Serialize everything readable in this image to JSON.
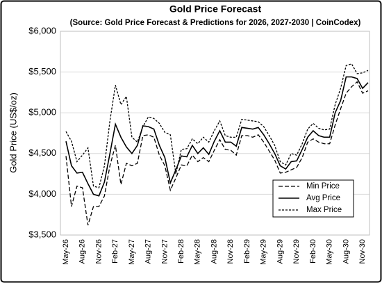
{
  "chart_data": {
    "type": "line",
    "title": "Gold Price Forecast",
    "subtitle": "(Source: Gold Price Forecast & Predictions for 2026, 2027-2030 | CoinCodex)",
    "y_label": "Gold Price (US$/oz)",
    "categories": [
      "May-26",
      null,
      null,
      "Aug-26",
      null,
      null,
      "Nov-26",
      null,
      null,
      "Feb-27",
      null,
      null,
      "May-27",
      null,
      null,
      "Aug-27",
      null,
      null,
      "Nov-27",
      null,
      null,
      "Feb-28",
      null,
      null,
      "May-28",
      null,
      null,
      "Aug-28",
      null,
      null,
      "Nov-28",
      null,
      null,
      "Feb-29",
      null,
      null,
      "May-29",
      null,
      null,
      "Aug-29",
      null,
      null,
      "Nov-29",
      null,
      null,
      "Feb-30",
      null,
      null,
      "May-30",
      null,
      null,
      "Aug-30",
      null,
      null,
      "Nov-30",
      null
    ],
    "series": [
      {
        "name": "Min Price",
        "color": "#000000",
        "dash": "6,3",
        "values": [
          4470,
          3850,
          4100,
          4080,
          3620,
          3850,
          3850,
          3980,
          4350,
          4600,
          4120,
          4380,
          4350,
          4380,
          4720,
          4730,
          4700,
          4480,
          4350,
          4050,
          4200,
          4360,
          4350,
          4480,
          4400,
          4450,
          4400,
          4540,
          4670,
          4550,
          4540,
          4480,
          4720,
          4720,
          4700,
          4730,
          4640,
          4530,
          4420,
          4260,
          4270,
          4300,
          4330,
          4450,
          4640,
          4680,
          4640,
          4620,
          4620,
          4850,
          5050,
          5240,
          5320,
          5380,
          5240,
          5270
        ]
      },
      {
        "name": "Avg Price",
        "color": "#000000",
        "dash": "none",
        "values": [
          4650,
          4350,
          4260,
          4270,
          4130,
          4000,
          3980,
          4150,
          4500,
          4860,
          4700,
          4580,
          4500,
          4600,
          4840,
          4830,
          4800,
          4600,
          4450,
          4140,
          4300,
          4470,
          4460,
          4600,
          4500,
          4570,
          4490,
          4650,
          4780,
          4640,
          4640,
          4590,
          4820,
          4810,
          4800,
          4820,
          4730,
          4620,
          4500,
          4350,
          4310,
          4400,
          4410,
          4550,
          4700,
          4780,
          4720,
          4700,
          4700,
          5000,
          5150,
          5440,
          5440,
          5420,
          5300,
          5370
        ]
      },
      {
        "name": "Max Price",
        "color": "#000000",
        "dash": "3,2",
        "values": [
          4770,
          4650,
          4400,
          4480,
          4570,
          4100,
          4080,
          4350,
          4900,
          5340,
          5100,
          5200,
          4700,
          4640,
          4830,
          4950,
          4930,
          4870,
          4760,
          4730,
          4250,
          4550,
          4560,
          4680,
          4620,
          4700,
          4640,
          4780,
          4900,
          4720,
          4700,
          4700,
          4920,
          4910,
          4900,
          4890,
          4830,
          4720,
          4600,
          4400,
          4360,
          4500,
          4480,
          4620,
          4800,
          4870,
          4810,
          4790,
          4800,
          5100,
          5300,
          5580,
          5600,
          5480,
          5490,
          5520
        ]
      }
    ],
    "ylim": [
      3500,
      6000
    ],
    "yticks": [
      {
        "value": 3500,
        "label": "$3,500"
      },
      {
        "value": 4000,
        "label": "$4,000"
      },
      {
        "value": 4500,
        "label": "$4,500"
      },
      {
        "value": 5000,
        "label": "$5,000"
      },
      {
        "value": 5500,
        "label": "$5,500"
      },
      {
        "value": 6000,
        "label": "$6,000"
      }
    ],
    "grid": true,
    "legend": "lower right"
  }
}
